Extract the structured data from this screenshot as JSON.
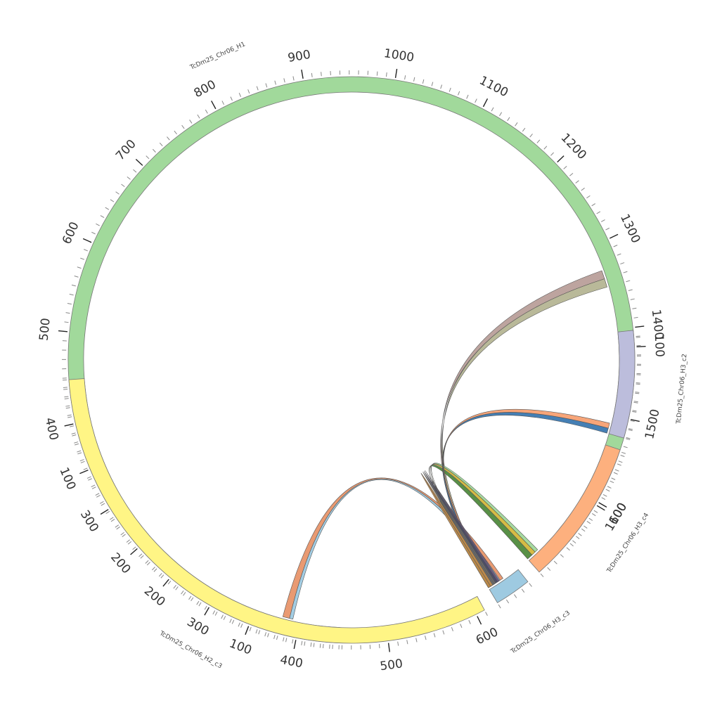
{
  "chart_data": {
    "type": "chord",
    "title": "",
    "segments": [
      {
        "name": "TcDm25_Chr06_H1",
        "length": 1650,
        "start_angle": 92.5,
        "end_angle": 400.0,
        "direction": -1,
        "color": "#a1d99b",
        "ticks": [
          100,
          200,
          300,
          400,
          500,
          600,
          700,
          800,
          900,
          1000,
          1100,
          1200,
          1300,
          1400,
          1500,
          1600
        ]
      },
      {
        "name": "TcDm25_Chr06_H2_c3",
        "length": 610,
        "start_angle": -184.0,
        "end_angle": -298.0,
        "direction": -1,
        "color": "#fff585",
        "ticks": [
          100,
          200,
          300,
          400,
          500,
          600
        ]
      },
      {
        "name": "TcDm25_Chr06_H3_c3",
        "length": 40,
        "start_angle": -301.0,
        "end_angle": -308.5,
        "direction": -1,
        "color": "#9ecae1",
        "ticks": []
      },
      {
        "name": "TcDm25_Chr06_H3_c4",
        "length": 162,
        "start_angle": -311.5,
        "end_angle": -341.5,
        "direction": -1,
        "color": "#fdb07e",
        "ticks": [
          100
        ]
      },
      {
        "name": "TcDm25_Chr06_H3_c2",
        "length": 118,
        "start_angle": -344.0,
        "end_angle": -366.0,
        "direction": -1,
        "color": "#bcbddc",
        "ticks": [
          100
        ]
      }
    ],
    "links": [
      {
        "from": "TcDm25_Chr06_H3_c3",
        "from_range": [
          16,
          20
        ],
        "to": "TcDm25_Chr06_H2_c3",
        "to_range": [
          380,
          388
        ],
        "color": "#e8956a"
      },
      {
        "from": "TcDm25_Chr06_H3_c3",
        "from_range": [
          12,
          16
        ],
        "to": "TcDm25_Chr06_H2_c3",
        "to_range": [
          388,
          392
        ],
        "color": "#9ecae1"
      },
      {
        "from": "TcDm25_Chr06_H3_c3",
        "from_range": [
          1,
          4
        ],
        "to": "TcDm25_Chr06_H1",
        "to_range": [
          1330,
          1340
        ],
        "color": "#b99f9a"
      },
      {
        "from": "TcDm25_Chr06_H3_c3",
        "from_range": [
          4,
          7
        ],
        "to": "TcDm25_Chr06_H1",
        "to_range": [
          1340,
          1350
        ],
        "color": "#b5b594"
      },
      {
        "from": "TcDm25_Chr06_H3_c3",
        "from_range": [
          0,
          2
        ],
        "to": "TcDm25_Chr06_H3_c4",
        "to_range": [
          0,
          7
        ],
        "color": "#4f8a3c"
      },
      {
        "from": "TcDm25_Chr06_H3_c3",
        "from_range": [
          2,
          4
        ],
        "to": "TcDm25_Chr06_H3_c4",
        "to_range": [
          7,
          12
        ],
        "color": "#d4b83a"
      },
      {
        "from": "TcDm25_Chr06_H3_c3",
        "from_range": [
          4,
          5
        ],
        "to": "TcDm25_Chr06_H3_c4",
        "to_range": [
          12,
          16
        ],
        "color": "#a1d99b"
      },
      {
        "from": "TcDm25_Chr06_H3_c3",
        "from_range": [
          5,
          7
        ],
        "to": "TcDm25_Chr06_H3_c2",
        "to_range": [
          0,
          6
        ],
        "color": "#3b78b0"
      },
      {
        "from": "TcDm25_Chr06_H3_c3",
        "from_range": [
          7,
          9
        ],
        "to": "TcDm25_Chr06_H3_c2",
        "to_range": [
          6,
          12
        ],
        "color": "#f7a072"
      },
      {
        "from": "TcDm25_Chr06_H3_c3",
        "from_range": [
          9,
          11
        ],
        "to": "TcDm25_Chr06_H3_c3",
        "to_range": [
          11,
          13
        ],
        "color": "#444466"
      },
      {
        "from": "TcDm25_Chr06_H3_c3",
        "from_range": [
          13,
          14
        ],
        "to": "TcDm25_Chr06_H3_c3",
        "to_range": [
          14,
          15
        ],
        "color": "#7a5a9a"
      },
      {
        "from": "TcDm25_Chr06_H3_c3",
        "from_range": [
          6,
          8
        ],
        "to": "TcDm25_Chr06_H3_c3",
        "to_range": [
          8,
          10
        ],
        "color": "#6a6a6a"
      },
      {
        "from": "TcDm25_Chr06_H3_c3",
        "from_range": [
          0,
          3
        ],
        "to": "TcDm25_Chr06_H3_c3",
        "to_range": [
          3,
          6
        ],
        "color": "#c08a4a"
      }
    ],
    "legend": "none",
    "grid": false
  }
}
